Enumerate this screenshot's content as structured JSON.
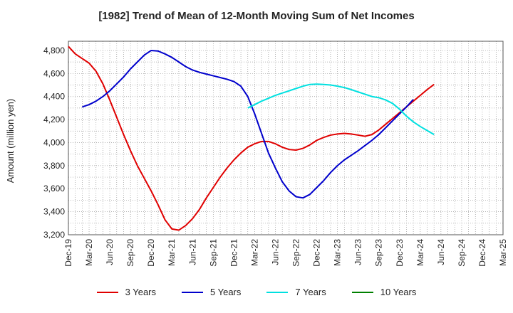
{
  "chart_data": {
    "type": "line",
    "title": "[1982]  Trend of Mean of 12-Month Moving Sum of Net Incomes",
    "xlabel": "",
    "ylabel": "Amount (million yen)",
    "ylim": [
      3200,
      4880
    ],
    "grid": true,
    "legend_position": "bottom",
    "x_tick_labels": [
      "Dec-19",
      "Mar-20",
      "Jun-20",
      "Sep-20",
      "Dec-20",
      "Mar-21",
      "Jun-21",
      "Sep-21",
      "Dec-21",
      "Mar-22",
      "Jun-22",
      "Sep-22",
      "Dec-22",
      "Mar-23",
      "Jun-23",
      "Sep-23",
      "Dec-23",
      "Mar-24",
      "Jun-24",
      "Sep-24",
      "Dec-24",
      "Mar-25"
    ],
    "y_ticks": [
      3200,
      3400,
      3600,
      3800,
      4000,
      4200,
      4400,
      4600,
      4800
    ],
    "y_tick_labels": [
      "3,200",
      "3,400",
      "3,600",
      "3,800",
      "4,000",
      "4,200",
      "4,400",
      "4,600",
      "4,800"
    ],
    "series": [
      {
        "name": "3 Years",
        "color": "#e00000",
        "start_index": 0,
        "values": [
          4835,
          4770,
          4730,
          4690,
          4620,
          4510,
          4370,
          4220,
          4070,
          3930,
          3800,
          3690,
          3580,
          3460,
          3330,
          3250,
          3240,
          3280,
          3340,
          3420,
          3520,
          3610,
          3700,
          3780,
          3850,
          3910,
          3960,
          3990,
          4010,
          4010,
          3990,
          3960,
          3940,
          3935,
          3950,
          3980,
          4020,
          4045,
          4065,
          4075,
          4080,
          4075,
          4065,
          4055,
          4070,
          4110,
          4160,
          4210,
          4260,
          4310,
          4360,
          4410,
          4460,
          4505
        ]
      },
      {
        "name": "5 Years",
        "color": "#0000cc",
        "start_index": 2,
        "values": [
          4310,
          4330,
          4360,
          4400,
          4450,
          4510,
          4570,
          4640,
          4700,
          4760,
          4800,
          4795,
          4770,
          4740,
          4700,
          4660,
          4630,
          4610,
          4595,
          4580,
          4565,
          4550,
          4530,
          4490,
          4400,
          4250,
          4080,
          3910,
          3780,
          3660,
          3580,
          3530,
          3520,
          3550,
          3610,
          3670,
          3740,
          3800,
          3850,
          3890,
          3930,
          3975,
          4020,
          4070,
          4130,
          4190,
          4250,
          4310,
          4375
        ]
      },
      {
        "name": "7 Years",
        "color": "#00e0e0",
        "start_index": 26,
        "values": [
          4300,
          4330,
          4360,
          4385,
          4410,
          4430,
          4450,
          4470,
          4490,
          4505,
          4508,
          4505,
          4500,
          4490,
          4478,
          4460,
          4440,
          4420,
          4400,
          4390,
          4370,
          4340,
          4290,
          4230,
          4180,
          4140,
          4105,
          4070
        ]
      },
      {
        "name": "10 Years",
        "color": "#008000",
        "start_index": 0,
        "values": []
      }
    ]
  }
}
